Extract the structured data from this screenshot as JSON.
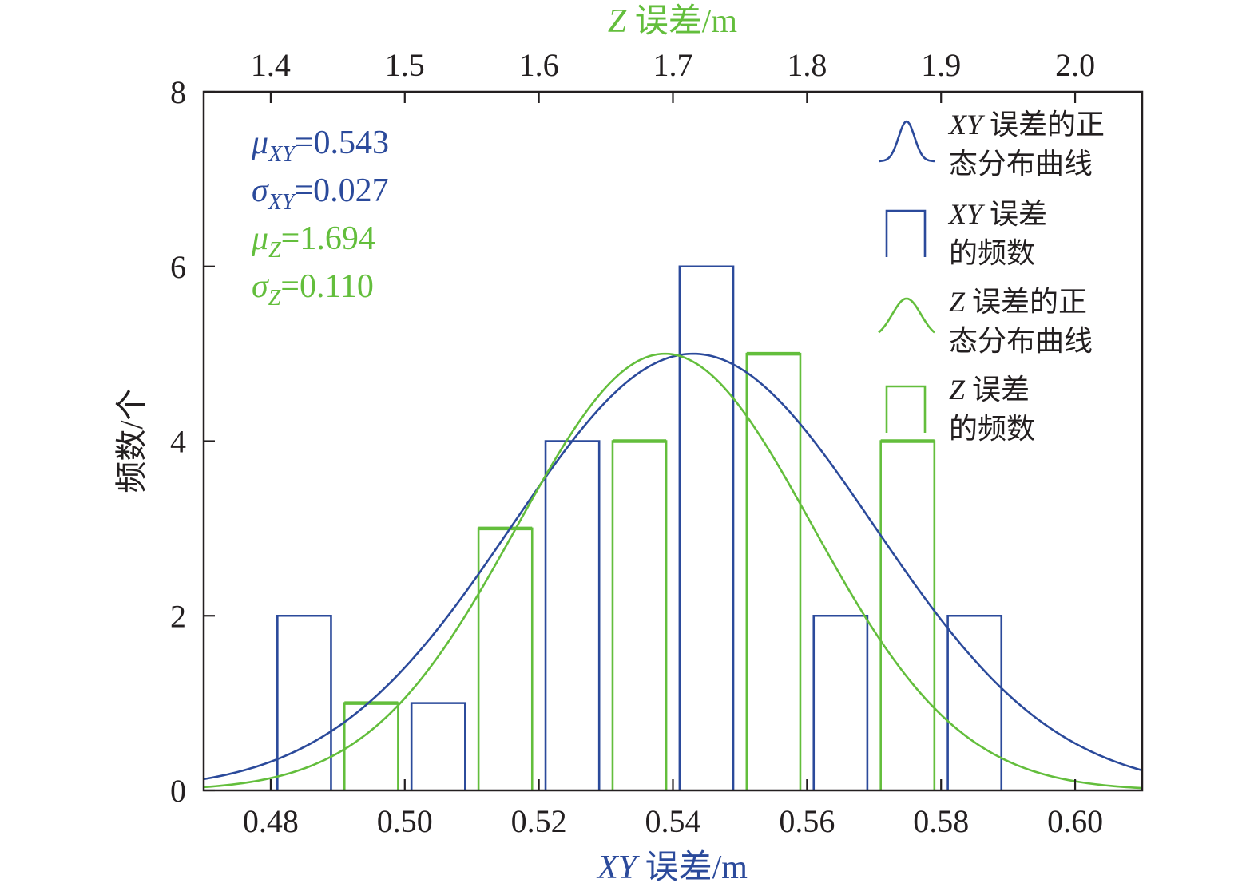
{
  "colors": {
    "xy": "#2b4a9b",
    "z": "#63be3c",
    "axis": "#231f20"
  },
  "chart_data": {
    "type": "bar",
    "subtype": "histogram with fitted normal curves",
    "x_bottom_axis": {
      "label_italic": "XY",
      "label_rest": " 误差/m",
      "range": [
        0.47,
        0.61
      ],
      "ticks": [
        0.48,
        0.5,
        0.52,
        0.54,
        0.56,
        0.58,
        0.6
      ],
      "tick_labels": [
        "0.48",
        "0.50",
        "0.52",
        "0.54",
        "0.56",
        "0.58",
        "0.60"
      ]
    },
    "x_top_axis": {
      "label_italic": "Z",
      "label_rest": " 误差/m",
      "range": [
        1.35,
        2.05
      ],
      "ticks": [
        1.4,
        1.5,
        1.6,
        1.7,
        1.8,
        1.9,
        2.0
      ],
      "tick_labels": [
        "1.4",
        "1.5",
        "1.6",
        "1.7",
        "1.8",
        "1.9",
        "2.0"
      ]
    },
    "y_axis": {
      "label": "频数/个",
      "range": [
        0,
        8
      ],
      "ticks": [
        0,
        2,
        4,
        6,
        8
      ],
      "tick_labels": [
        "0",
        "2",
        "4",
        "6",
        "8"
      ]
    },
    "grid": false,
    "legend_position": "top-right",
    "series": [
      {
        "name": "XY 误差的频数",
        "kind": "histogram",
        "color": "xy",
        "axis": "bottom",
        "bins": [
          {
            "x0": 0.481,
            "x1": 0.489,
            "count": 2
          },
          {
            "x0": 0.491,
            "x1": 0.499,
            "count": 0
          },
          {
            "x0": 0.501,
            "x1": 0.509,
            "count": 1
          },
          {
            "x0": 0.511,
            "x1": 0.519,
            "count": 0
          },
          {
            "x0": 0.521,
            "x1": 0.529,
            "count": 4
          },
          {
            "x0": 0.531,
            "x1": 0.539,
            "count": 0
          },
          {
            "x0": 0.541,
            "x1": 0.549,
            "count": 6
          },
          {
            "x0": 0.551,
            "x1": 0.559,
            "count": 0
          },
          {
            "x0": 0.561,
            "x1": 0.569,
            "count": 2
          },
          {
            "x0": 0.571,
            "x1": 0.579,
            "count": 0
          },
          {
            "x0": 0.581,
            "x1": 0.589,
            "count": 2
          }
        ]
      },
      {
        "name": "Z 误差的频数",
        "kind": "histogram",
        "color": "z",
        "axis": "top",
        "bins": [
          {
            "x0": 1.455,
            "x1": 1.495,
            "count": 1
          },
          {
            "x0": 1.555,
            "x1": 1.595,
            "count": 3
          },
          {
            "x0": 1.655,
            "x1": 1.695,
            "count": 4
          },
          {
            "x0": 1.755,
            "x1": 1.795,
            "count": 5
          },
          {
            "x0": 1.855,
            "x1": 1.895,
            "count": 4
          }
        ]
      },
      {
        "name": "XY 误差的正态分布曲线",
        "kind": "normal_curve",
        "color": "xy",
        "axis": "bottom",
        "mu": 0.543,
        "sigma": 0.027,
        "peak": 5
      },
      {
        "name": "Z 误差的正态分布曲线",
        "kind": "normal_curve",
        "color": "z",
        "axis": "top",
        "mu": 1.694,
        "sigma": 0.11,
        "peak": 5
      }
    ],
    "annotations": [
      {
        "symbol": "μ",
        "sub": "XY",
        "value": "=0.543",
        "color": "xy"
      },
      {
        "symbol": "σ",
        "sub": "XY",
        "value": "=0.027",
        "color": "xy"
      },
      {
        "symbol": "μ",
        "sub": "Z",
        "value": "=1.694",
        "color": "z"
      },
      {
        "symbol": "σ",
        "sub": "Z",
        "value": "=0.110",
        "color": "z"
      }
    ],
    "legend": [
      {
        "italic": "XY",
        "line1": " 误差的正",
        "line2": "态分布曲线",
        "color": "xy",
        "kind": "curve"
      },
      {
        "italic": "XY",
        "line1": " 误差",
        "line2": "的频数",
        "color": "xy",
        "kind": "bar"
      },
      {
        "italic": "Z",
        "line1": " 误差的正",
        "line2": "态分布曲线",
        "color": "z",
        "kind": "curve"
      },
      {
        "italic": "Z",
        "line1": " 误差",
        "line2": "的频数",
        "color": "z",
        "kind": "bar"
      }
    ]
  }
}
